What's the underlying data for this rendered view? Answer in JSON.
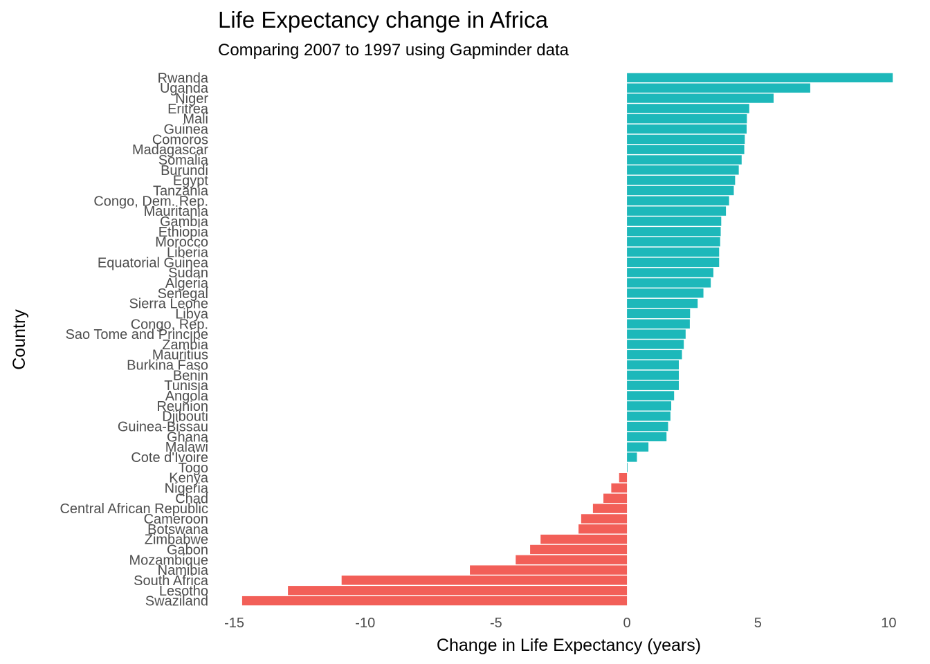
{
  "chart_data": {
    "type": "bar",
    "orientation": "horizontal",
    "title": "Life Expectancy change in Africa",
    "subtitle": "Comparing 2007 to 1997 using Gapminder data",
    "xlabel": "Change in Life Expectancy (years)",
    "ylabel": "Country",
    "xlim": [
      -15.2,
      10.2
    ],
    "xticks": [
      -15,
      -10,
      -5,
      0,
      5,
      10
    ],
    "grid": false,
    "colors": {
      "positive": "#1DB8BA",
      "negative": "#F25F58"
    },
    "categories": [
      "Rwanda",
      "Uganda",
      "Niger",
      "Eritrea",
      "Mali",
      "Guinea",
      "Comoros",
      "Madagascar",
      "Somalia",
      "Burundi",
      "Egypt",
      "Tanzania",
      "Congo, Dem. Rep.",
      "Mauritania",
      "Gambia",
      "Ethiopia",
      "Morocco",
      "Liberia",
      "Equatorial Guinea",
      "Sudan",
      "Algeria",
      "Senegal",
      "Sierra Leone",
      "Libya",
      "Congo, Rep.",
      "Sao Tome and Principe",
      "Zambia",
      "Mauritius",
      "Burkina Faso",
      "Benin",
      "Tunisia",
      "Angola",
      "Reunion",
      "Djibouti",
      "Guinea-Bissau",
      "Ghana",
      "Malawi",
      "Cote d'Ivoire",
      "Togo",
      "Kenya",
      "Nigeria",
      "Chad",
      "Central African Republic",
      "Cameroon",
      "Botswana",
      "Zimbabwe",
      "Gabon",
      "Mozambique",
      "Namibia",
      "South Africa",
      "Lesotho",
      "Swaziland"
    ],
    "values": [
      10.15,
      7.0,
      5.6,
      4.67,
      4.58,
      4.57,
      4.5,
      4.48,
      4.38,
      4.27,
      4.13,
      4.08,
      3.9,
      3.78,
      3.6,
      3.58,
      3.56,
      3.52,
      3.52,
      3.3,
      3.2,
      2.92,
      2.7,
      2.41,
      2.4,
      2.24,
      2.17,
      2.1,
      1.98,
      1.98,
      1.98,
      1.8,
      1.69,
      1.66,
      1.57,
      1.51,
      0.82,
      0.38,
      0.0,
      -0.3,
      -0.6,
      -0.9,
      -1.3,
      -1.75,
      -1.85,
      -3.3,
      -3.7,
      -4.25,
      -6.0,
      -10.9,
      -12.95,
      -14.7
    ]
  }
}
